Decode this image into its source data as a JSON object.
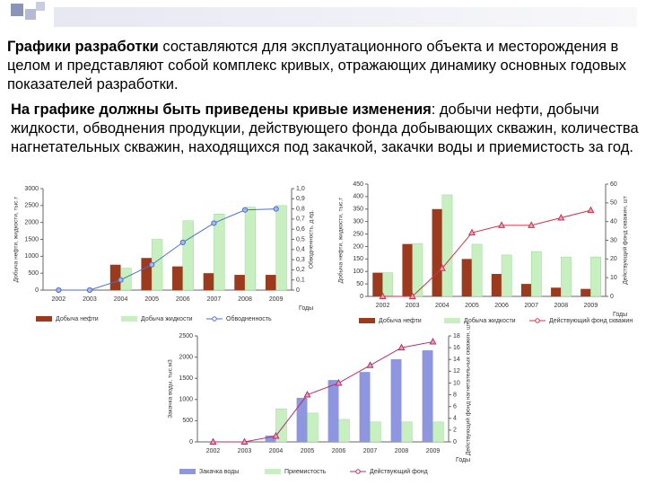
{
  "text": {
    "paragraph1": {
      "bold": "Графики разработки",
      "rest": " составляются для эксплуатационного объекта и месторождения в целом и представляют собой комплекс кривых, отражающих динамику основных годовых показателей разработки."
    },
    "paragraph2": {
      "bold": "На графике должны быть приведены кривые изменения",
      "rest": ": добычи нефти, добычи жидкости, обводнения продукции, действующего фонда добывающих скважин, количества нагнетательных скважин, находящихся под закачкой, закачки воды и приемистость за год."
    }
  },
  "chart_data": [
    {
      "type": "bar",
      "categories": [
        "2002",
        "2003",
        "2004",
        "2005",
        "2006",
        "2007",
        "2008",
        "2009"
      ],
      "x_label": "Годы",
      "y_label": "Добыча нефти, жидкости, тыс.т",
      "y2_label": "Обводненность, д.ед.",
      "ylim": [
        0,
        3000
      ],
      "yticks": [
        0,
        500,
        1000,
        1500,
        2000,
        2500,
        3000
      ],
      "y2lim": [
        0,
        1
      ],
      "y2ticks": [
        0,
        {
          "value": 0.1,
          "label": "0,1"
        },
        {
          "value": 0.2,
          "label": "0,2"
        },
        {
          "value": 0.3,
          "label": "0,3"
        },
        {
          "value": 0.4,
          "label": "0,4"
        },
        {
          "value": 0.5,
          "label": "0,5"
        },
        {
          "value": 0.6,
          "label": "0,6"
        },
        {
          "value": 0.7,
          "label": "0,7"
        },
        {
          "value": 0.8,
          "label": "0,8"
        },
        {
          "value": 0.9,
          "label": "0,9"
        },
        {
          "value": 1,
          "label": "1,0"
        }
      ],
      "series": [
        {
          "name": "Добыча нефти",
          "type": "bar",
          "color": "#9c3a1e",
          "values": [
            null,
            null,
            750,
            950,
            700,
            500,
            450,
            450
          ]
        },
        {
          "name": "Добыча жидкости",
          "type": "bar",
          "color": "#c8efc0",
          "values": [
            null,
            null,
            650,
            1500,
            2050,
            2250,
            2450,
            2500
          ]
        },
        {
          "name": "Обводненность",
          "type": "line",
          "axis": "y2",
          "marker": "circle",
          "color": "#4a6fd0",
          "values": [
            0,
            0,
            0.1,
            0.25,
            0.47,
            0.66,
            0.79,
            0.8
          ]
        }
      ]
    },
    {
      "type": "bar",
      "categories": [
        "2002",
        "2003",
        "2004",
        "2005",
        "2006",
        "2007",
        "2008",
        "2009"
      ],
      "x_label": "Годы",
      "y_label": "Добыча нефти, жидкости, тыс.т",
      "y2_label": "Действующий фонд скважин, шт",
      "ylim": [
        0,
        450
      ],
      "yticks": [
        0,
        50,
        100,
        150,
        200,
        250,
        300,
        350,
        400,
        450
      ],
      "y2lim": [
        0,
        60
      ],
      "y2ticks": [
        0,
        10,
        20,
        30,
        40,
        50,
        60
      ],
      "series": [
        {
          "name": "Добыча нефти",
          "type": "bar",
          "color": "#9c3a1e",
          "values": [
            95,
            210,
            350,
            150,
            90,
            50,
            35,
            30
          ]
        },
        {
          "name": "Добыча жидкости",
          "type": "bar",
          "color": "#c8efc0",
          "values": [
            95,
            212,
            407,
            209,
            166,
            180,
            158,
            158
          ]
        },
        {
          "name": "Действующий фонд скважин",
          "type": "line",
          "axis": "y2",
          "marker": "triangle",
          "color": "#d0324a",
          "values": [
            0,
            0,
            15,
            34,
            38,
            38,
            42,
            46
          ]
        }
      ]
    },
    {
      "type": "bar",
      "categories": [
        "2002",
        "2003",
        "2004",
        "2005",
        "2006",
        "2007",
        "2008",
        "2009"
      ],
      "x_label": "Годы",
      "y_label": "Закачка воды, тыс.м3",
      "y2_label": "Действующий фонд нагнетательных скважин, шт",
      "ylim": [
        0,
        2500
      ],
      "yticks": [
        0,
        500,
        1000,
        1500,
        2000,
        2500
      ],
      "y2lim": [
        0,
        18
      ],
      "y2ticks": [
        0,
        2,
        4,
        6,
        8,
        10,
        12,
        14,
        16,
        18
      ],
      "series": [
        {
          "name": "Закачка воды",
          "type": "bar",
          "color": "#8f96e0",
          "values": [
            null,
            null,
            150,
            1040,
            1460,
            1650,
            1950,
            2160
          ]
        },
        {
          "name": "Приемистость",
          "type": "bar",
          "color": "#c8efc0",
          "values": [
            null,
            null,
            780,
            680,
            530,
            470,
            470,
            470
          ]
        },
        {
          "name": "Действующий фонд",
          "type": "line",
          "axis": "y2",
          "marker": "triangle",
          "color": "#b0306a",
          "values": [
            0,
            0,
            1,
            8,
            10,
            13,
            16,
            17
          ]
        }
      ]
    }
  ]
}
